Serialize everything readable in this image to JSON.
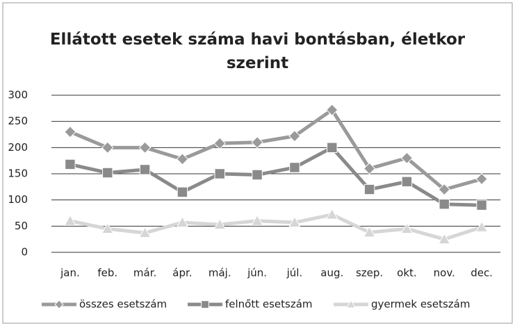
{
  "chart_data": {
    "type": "line",
    "title": "Ellátott esetek száma havi bontásban, életkor szerint",
    "categories": [
      "jan.",
      "feb.",
      "már.",
      "ápr.",
      "máj.",
      "jún.",
      "júl.",
      "aug.",
      "szep.",
      "okt.",
      "nov.",
      "dec."
    ],
    "series": [
      {
        "name": "összes esetszám",
        "color": "#9a9a9a",
        "marker": "diamond",
        "values": [
          230,
          200,
          200,
          178,
          208,
          210,
          222,
          272,
          160,
          180,
          120,
          140
        ]
      },
      {
        "name": "felnőtt esetszám",
        "color": "#8a8a8a",
        "marker": "square",
        "values": [
          168,
          152,
          158,
          115,
          150,
          148,
          162,
          200,
          120,
          135,
          92,
          90
        ]
      },
      {
        "name": "gyermek esetszám",
        "color": "#d6d6d6",
        "marker": "triangle",
        "values": [
          60,
          45,
          37,
          57,
          53,
          60,
          57,
          72,
          38,
          45,
          25,
          48
        ]
      }
    ],
    "ylim": [
      0,
      300
    ],
    "yticks": [
      0,
      50,
      100,
      150,
      200,
      250,
      300
    ],
    "grid": true,
    "legend": "bottom"
  }
}
